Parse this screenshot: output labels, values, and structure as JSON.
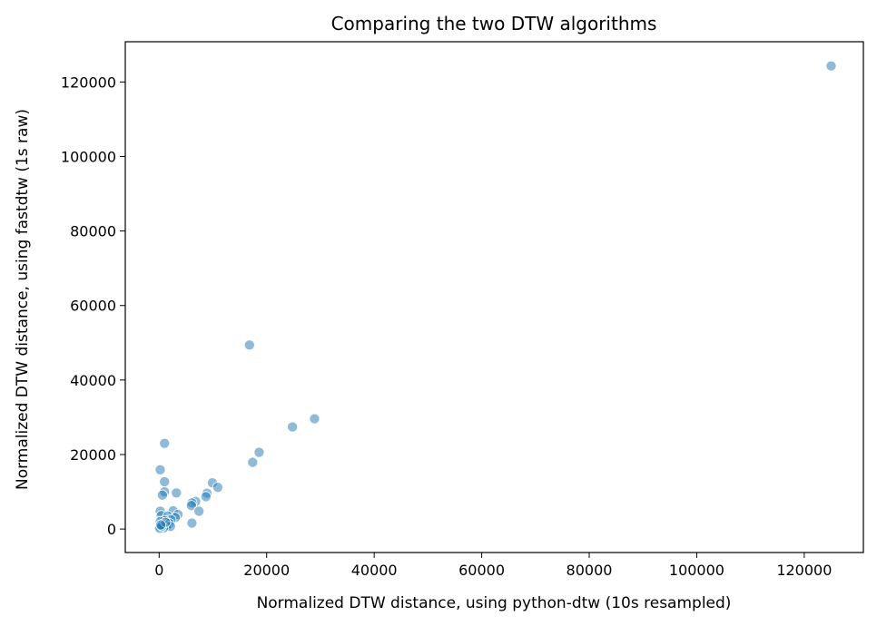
{
  "chart_data": {
    "type": "scatter",
    "title": "Comparing the two DTW algorithms",
    "xlabel": "Normalized DTW distance, using python-dtw (10s resampled)",
    "ylabel": "Normalized DTW distance, using fastdtw (1s raw)",
    "xlim": [
      -6300,
      131000
    ],
    "ylim": [
      -6300,
      130800
    ],
    "xticks": [
      0,
      20000,
      40000,
      60000,
      80000,
      100000,
      120000
    ],
    "yticks": [
      0,
      20000,
      40000,
      60000,
      80000,
      100000,
      120000
    ],
    "grid": false,
    "marker_color": "#1f77b4",
    "marker_alpha": 0.5,
    "points": [
      {
        "x": 125000,
        "y": 124300
      },
      {
        "x": 16800,
        "y": 49400
      },
      {
        "x": 28900,
        "y": 29600
      },
      {
        "x": 24800,
        "y": 27400
      },
      {
        "x": 18600,
        "y": 20600
      },
      {
        "x": 17400,
        "y": 17900
      },
      {
        "x": 1000,
        "y": 23000
      },
      {
        "x": 200,
        "y": 15900
      },
      {
        "x": 1000,
        "y": 12700
      },
      {
        "x": 9900,
        "y": 12400
      },
      {
        "x": 10900,
        "y": 11200
      },
      {
        "x": 1000,
        "y": 10000
      },
      {
        "x": 3200,
        "y": 9700
      },
      {
        "x": 8900,
        "y": 9600
      },
      {
        "x": 600,
        "y": 9100
      },
      {
        "x": 8700,
        "y": 8700
      },
      {
        "x": 6800,
        "y": 7400
      },
      {
        "x": 6100,
        "y": 7000
      },
      {
        "x": 6000,
        "y": 6300
      },
      {
        "x": 7400,
        "y": 4800
      },
      {
        "x": 2600,
        "y": 4900
      },
      {
        "x": 200,
        "y": 4800
      },
      {
        "x": 3500,
        "y": 3900
      },
      {
        "x": 400,
        "y": 3600
      },
      {
        "x": 1600,
        "y": 3500
      },
      {
        "x": 3000,
        "y": 3100
      },
      {
        "x": 2200,
        "y": 2500
      },
      {
        "x": 1000,
        "y": 2300
      },
      {
        "x": 6100,
        "y": 1600
      },
      {
        "x": 200,
        "y": 2000
      },
      {
        "x": 1900,
        "y": 1500
      },
      {
        "x": 600,
        "y": 1300
      },
      {
        "x": 1400,
        "y": 900
      },
      {
        "x": 2100,
        "y": 700
      },
      {
        "x": 200,
        "y": 600
      },
      {
        "x": 800,
        "y": 300
      },
      {
        "x": 100,
        "y": 200
      },
      {
        "x": 500,
        "y": 800
      },
      {
        "x": 1200,
        "y": 1800
      },
      {
        "x": 300,
        "y": 1100
      }
    ]
  }
}
